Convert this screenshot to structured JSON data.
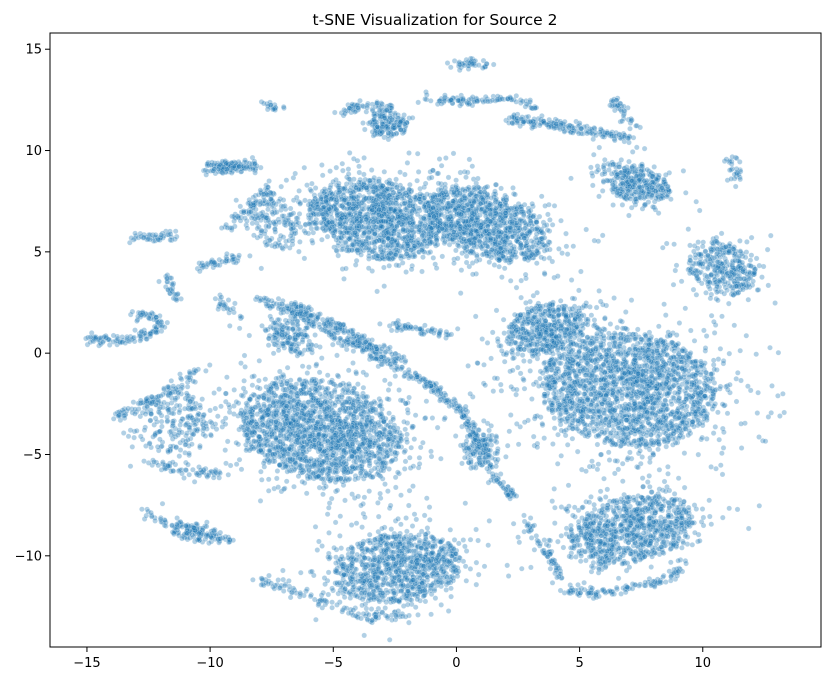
{
  "chart_data": {
    "type": "scatter",
    "title": "t-SNE Visualization for Source 2",
    "xlabel": "",
    "ylabel": "",
    "xlim": [
      -16.5,
      14.8
    ],
    "ylim": [
      -14.5,
      15.8
    ],
    "xticks": [
      -15,
      -10,
      -5,
      0,
      5,
      10
    ],
    "xtick_labels": [
      "−15",
      "−10",
      "−5",
      "0",
      "5",
      "10"
    ],
    "yticks": [
      -10,
      -5,
      0,
      5,
      10,
      15
    ],
    "ytick_labels": [
      "−10",
      "−5",
      "0",
      "5",
      "10",
      "15"
    ],
    "grid": false,
    "legend": "none",
    "marker_color": "#1f77b4",
    "marker_edge": "#ffffff",
    "marker_alpha": 0.35,
    "series": [
      {
        "clusters": [
          {
            "cx": -3.2,
            "cy": 6.6,
            "sx": 2.8,
            "sy": 1.9,
            "angle": -15,
            "n": 1400
          },
          {
            "cx": 1.2,
            "cy": 6.4,
            "sx": 2.6,
            "sy": 1.6,
            "angle": -30,
            "n": 1100
          },
          {
            "cx": 7.0,
            "cy": -1.8,
            "sx": 3.6,
            "sy": 2.8,
            "angle": -10,
            "n": 2200
          },
          {
            "cx": 3.6,
            "cy": 1.2,
            "sx": 1.6,
            "sy": 1.2,
            "angle": 20,
            "n": 500
          },
          {
            "cx": -5.5,
            "cy": -3.8,
            "sx": 3.4,
            "sy": 2.4,
            "angle": -20,
            "n": 1900
          },
          {
            "cx": -2.4,
            "cy": -10.6,
            "sx": 2.6,
            "sy": 1.7,
            "angle": 10,
            "n": 1000
          },
          {
            "cx": 7.1,
            "cy": -8.7,
            "sx": 2.6,
            "sy": 1.6,
            "angle": 15,
            "n": 950
          },
          {
            "cx": 7.3,
            "cy": 8.4,
            "sx": 1.5,
            "sy": 0.9,
            "angle": -25,
            "n": 350
          },
          {
            "cx": 10.8,
            "cy": 4.2,
            "sx": 1.5,
            "sy": 1.2,
            "angle": -40,
            "n": 350
          },
          {
            "cx": -2.8,
            "cy": 11.3,
            "sx": 0.8,
            "sy": 0.6,
            "angle": 0,
            "n": 150
          },
          {
            "cx": -7.4,
            "cy": 6.5,
            "sx": 0.9,
            "sy": 1.5,
            "angle": 15,
            "n": 140
          },
          {
            "cx": -9.3,
            "cy": 9.2,
            "sx": 0.9,
            "sy": 0.3,
            "angle": -5,
            "n": 70
          },
          {
            "cx": -11.5,
            "cy": -3.5,
            "sx": 1.4,
            "sy": 1.7,
            "angle": 0,
            "n": 220
          },
          {
            "cx": -6.8,
            "cy": 0.8,
            "sx": 1.1,
            "sy": 0.7,
            "angle": -40,
            "n": 150
          },
          {
            "cx": 1.0,
            "cy": -4.8,
            "sx": 0.8,
            "sy": 0.9,
            "angle": 0,
            "n": 120
          },
          {
            "cx": -10.4,
            "cy": -8.9,
            "sx": 1.2,
            "sy": 0.45,
            "angle": -10,
            "n": 90
          }
        ],
        "strands": [
          {
            "points": [
              [
                -15.0,
                0.7
              ],
              [
                -13.5,
                0.6
              ],
              [
                -12.3,
                1.0
              ],
              [
                -12.0,
                1.7
              ],
              [
                -13.2,
                2.0
              ]
            ],
            "n": 130
          },
          {
            "points": [
              [
                -13.8,
                -3.2
              ],
              [
                -12.2,
                -2.2
              ],
              [
                -11.0,
                -1.5
              ],
              [
                -10.6,
                -0.8
              ]
            ],
            "n": 90
          },
          {
            "points": [
              [
                -12.5,
                -5.4
              ],
              [
                -10.8,
                -5.8
              ],
              [
                -9.5,
                -6.0
              ]
            ],
            "n": 60
          },
          {
            "points": [
              [
                -12.7,
                -7.9
              ],
              [
                -11.5,
                -8.4
              ],
              [
                -10.3,
                -8.9
              ],
              [
                -9.2,
                -9.3
              ]
            ],
            "n": 70
          },
          {
            "points": [
              [
                -13.2,
                5.8
              ],
              [
                -12.2,
                5.7
              ],
              [
                -11.4,
                5.8
              ]
            ],
            "n": 45
          },
          {
            "points": [
              [
                -10.0,
                9.0
              ],
              [
                -8.8,
                9.3
              ],
              [
                -8.0,
                9.1
              ]
            ],
            "n": 55
          },
          {
            "points": [
              [
                -10.6,
                4.2
              ],
              [
                -9.6,
                4.5
              ],
              [
                -8.6,
                4.9
              ]
            ],
            "n": 45
          },
          {
            "points": [
              [
                -11.8,
                3.8
              ],
              [
                -11.5,
                3.2
              ],
              [
                -11.4,
                2.7
              ]
            ],
            "n": 30
          },
          {
            "points": [
              [
                -8.0,
                2.7
              ],
              [
                -6.5,
                2.0
              ],
              [
                -4.5,
                0.6
              ],
              [
                -2.5,
                -0.6
              ],
              [
                -1.0,
                -1.6
              ],
              [
                0.2,
                -2.8
              ],
              [
                1.0,
                -4.5
              ],
              [
                1.6,
                -6.2
              ],
              [
                2.4,
                -7.2
              ]
            ],
            "n": 420
          },
          {
            "points": [
              [
                -6.6,
                2.4
              ],
              [
                -5.0,
                1.4
              ],
              [
                -3.5,
                0.4
              ],
              [
                -2.0,
                -0.4
              ]
            ],
            "n": 160
          },
          {
            "points": [
              [
                -2.8,
                1.4
              ],
              [
                -1.5,
                1.2
              ],
              [
                -0.3,
                0.9
              ]
            ],
            "n": 60
          },
          {
            "points": [
              [
                -0.2,
                14.2
              ],
              [
                0.6,
                14.3
              ],
              [
                1.5,
                14.2
              ]
            ],
            "n": 40
          },
          {
            "points": [
              [
                -1.4,
                12.6
              ],
              [
                0.3,
                12.4
              ],
              [
                2.0,
                12.6
              ],
              [
                3.3,
                12.2
              ]
            ],
            "n": 100
          },
          {
            "points": [
              [
                2.2,
                11.6
              ],
              [
                4.2,
                11.2
              ],
              [
                6.2,
                10.8
              ],
              [
                7.2,
                10.6
              ]
            ],
            "n": 170
          },
          {
            "points": [
              [
                6.2,
                12.6
              ],
              [
                6.8,
                11.8
              ],
              [
                7.2,
                11.2
              ]
            ],
            "n": 40
          },
          {
            "points": [
              [
                -7.8,
                12.4
              ],
              [
                -7.2,
                12.0
              ]
            ],
            "n": 18
          },
          {
            "points": [
              [
                11.1,
                9.8
              ],
              [
                11.3,
                9.2
              ],
              [
                11.4,
                8.4
              ]
            ],
            "n": 28
          },
          {
            "points": [
              [
                -4.6,
                12.0
              ],
              [
                -3.6,
                12.2
              ],
              [
                -2.6,
                12.1
              ]
            ],
            "n": 60
          },
          {
            "points": [
              [
                9.2,
                -10.6
              ],
              [
                8.2,
                -11.3
              ],
              [
                7.0,
                -11.6
              ],
              [
                5.6,
                -11.8
              ],
              [
                4.4,
                -11.7
              ]
            ],
            "n": 110
          },
          {
            "points": [
              [
                -8.1,
                -11.2
              ],
              [
                -6.8,
                -11.6
              ],
              [
                -5.2,
                -12.4
              ],
              [
                -3.6,
                -13.1
              ],
              [
                -2.2,
                -12.8
              ]
            ],
            "n": 100
          },
          {
            "points": [
              [
                2.8,
                -8.2
              ],
              [
                3.5,
                -9.5
              ],
              [
                4.2,
                -11.0
              ]
            ],
            "n": 60
          },
          {
            "points": [
              [
                -9.3,
                6.1
              ],
              [
                -8.8,
                6.6
              ],
              [
                -8.2,
                7.4
              ],
              [
                -7.6,
                8.2
              ]
            ],
            "n": 60
          },
          {
            "points": [
              [
                -9.8,
                2.6
              ],
              [
                -9.3,
                2.2
              ],
              [
                -8.7,
                1.6
              ]
            ],
            "n": 25
          }
        ]
      }
    ]
  }
}
